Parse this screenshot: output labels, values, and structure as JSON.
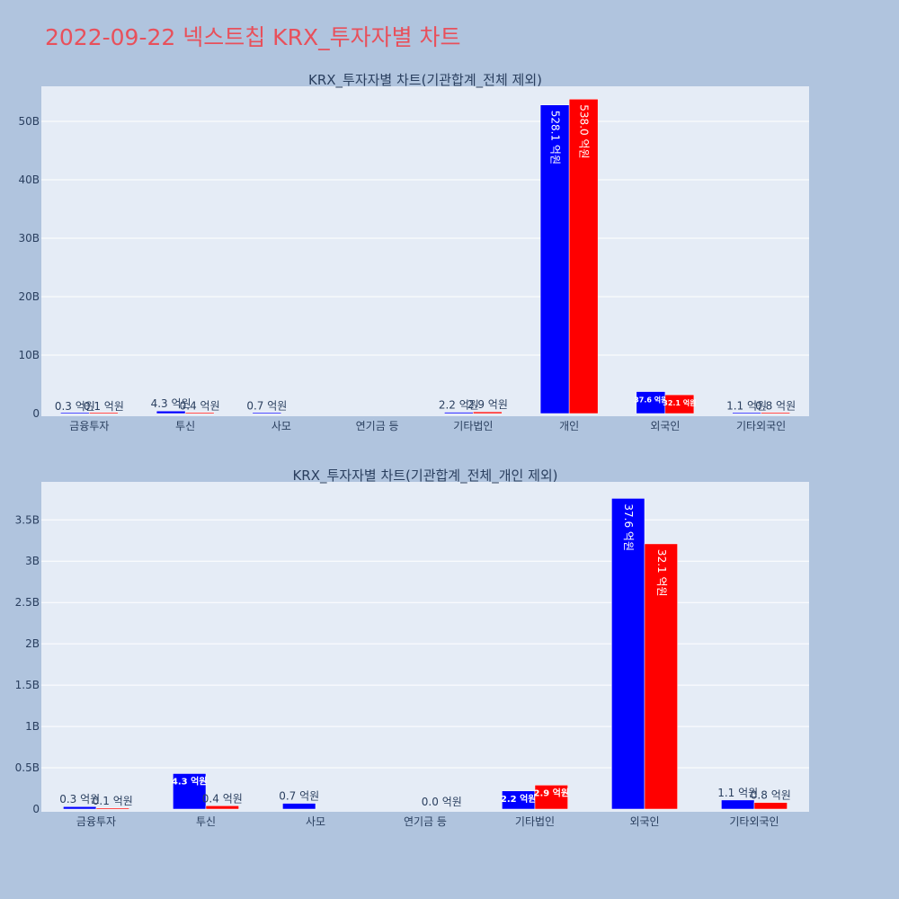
{
  "page": {
    "title": "2022-09-22 넥스트칩 KRX_투자자별 차트"
  },
  "colors": {
    "background": "#b0c4de",
    "plot_bg": "#e5ecf6",
    "grid": "#ffffff",
    "buy": "#0000ff",
    "sell": "#ff0000",
    "title": "#e8505b",
    "text": "#2a3f5f"
  },
  "chart_data": [
    {
      "type": "bar",
      "title": "KRX_투자자별 차트(기관합계_전체 제외)",
      "categories": [
        "금융투자",
        "투신",
        "사모",
        "연기금 등",
        "기타법인",
        "개인",
        "외국인",
        "기타외국인"
      ],
      "series": [
        {
          "color": "#0000ff",
          "values": [
            30000000,
            430000000,
            70000000,
            null,
            220000000,
            52810000000,
            3760000000,
            110000000
          ],
          "labels": [
            "0.3 억원",
            "4.3 억원",
            "0.7 억원",
            "",
            "2.2 억원",
            "528.1 억원",
            "37.6 억원",
            "1.1 억원"
          ]
        },
        {
          "color": "#ff0000",
          "values": [
            10000000,
            40000000,
            null,
            null,
            290000000,
            53800000000,
            3210000000,
            80000000
          ],
          "labels": [
            "0.1 억원",
            "0.4 억원",
            "",
            "",
            "2.9 억원",
            "538.0 억원",
            "32.1 억원",
            "0.8 억원"
          ]
        }
      ],
      "yticks": [
        0,
        10000000000,
        20000000000,
        30000000000,
        40000000000,
        50000000000
      ],
      "ytick_labels": [
        "0",
        "10B",
        "20B",
        "30B",
        "40B",
        "50B"
      ],
      "ylim": [
        0,
        56000000000
      ],
      "grid": true
    },
    {
      "type": "bar",
      "title": "KRX_투자자별 차트(기관합계_전체_개인 제외)",
      "categories": [
        "금융투자",
        "투신",
        "사모",
        "연기금 등",
        "기타법인",
        "외국인",
        "기타외국인"
      ],
      "series": [
        {
          "color": "#0000ff",
          "values": [
            30000000,
            430000000,
            70000000,
            null,
            220000000,
            3760000000,
            110000000
          ],
          "labels": [
            "0.3 억원",
            "4.3 억원",
            "0.7 억원",
            "",
            "2.2 억원",
            "37.6 억원",
            "1.1 억원"
          ]
        },
        {
          "color": "#ff0000",
          "values": [
            10000000,
            40000000,
            null,
            0,
            290000000,
            3210000000,
            80000000
          ],
          "labels": [
            "0.1 억원",
            "0.4 억원",
            "",
            "0.0 억원",
            "2.9 억원",
            "32.1 억원",
            "0.8 억원"
          ]
        }
      ],
      "yticks": [
        0,
        500000000,
        1000000000,
        1500000000,
        2000000000,
        2500000000,
        3000000000,
        3500000000
      ],
      "ytick_labels": [
        "0",
        "0.5B",
        "1B",
        "1.5B",
        "2B",
        "2.5B",
        "3B",
        "3.5B"
      ],
      "ylim": [
        0,
        3960000000
      ],
      "grid": true
    }
  ]
}
